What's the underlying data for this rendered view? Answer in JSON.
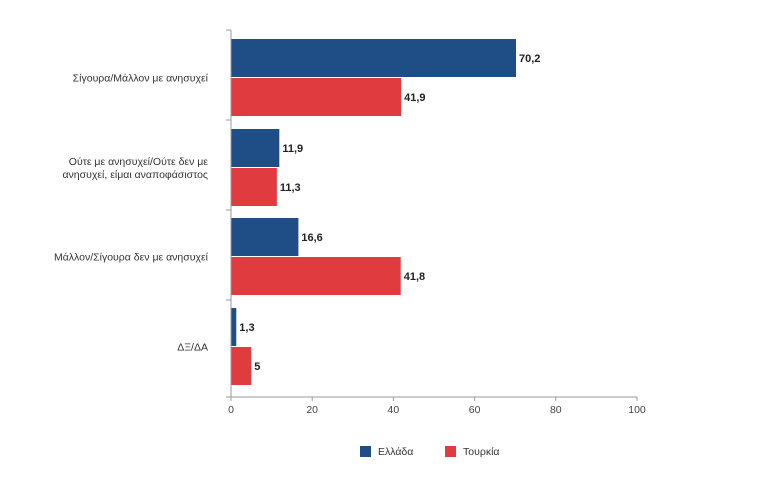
{
  "chart_data": {
    "type": "bar",
    "orientation": "horizontal",
    "categories": [
      [
        "Σίγουρα/Μάλλον με ανησυχεί"
      ],
      [
        "Ούτε με ανησυχεί/Ούτε δεν με",
        "ανησυχεί, είμαι αναποφάσιστος"
      ],
      [
        "Μάλλον/Σίγουρα δεν με ανησυχεί"
      ],
      [
        "ΔΞ/ΔΑ"
      ]
    ],
    "series": [
      {
        "name": "Ελλάδα",
        "color": "#1f4e86",
        "values": [
          70.2,
          11.9,
          16.6,
          1.3
        ],
        "labels": [
          "70,2",
          "11,9",
          "16,6",
          "1,3"
        ]
      },
      {
        "name": "Τουρκία",
        "color": "#e03b3f",
        "values": [
          41.9,
          11.3,
          41.8,
          5
        ],
        "labels": [
          "41,9",
          "11,3",
          "41,8",
          "5"
        ]
      }
    ],
    "xlim": [
      0,
      100
    ],
    "xticks": [
      0,
      20,
      40,
      60,
      80,
      100
    ],
    "grid": false,
    "legend_position": "bottom-center",
    "title": "",
    "xlabel": "",
    "ylabel": ""
  }
}
